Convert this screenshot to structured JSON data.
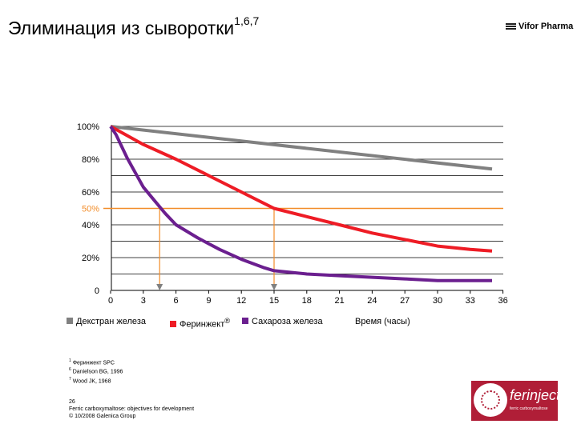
{
  "header": {
    "title": "Элиминация из сыворотки",
    "title_sup": "1,6,7",
    "logo_text": "Vifor Pharma"
  },
  "chart_data": {
    "type": "line",
    "xlabel": "Время (часы)",
    "ylabel": "",
    "x_ticks": [
      0,
      3,
      6,
      9,
      12,
      15,
      18,
      21,
      24,
      27,
      30,
      33,
      36
    ],
    "y_tick_labels": [
      {
        "value": 0,
        "label": "0"
      },
      {
        "value": 20,
        "label": "20%"
      },
      {
        "value": 40,
        "label": "40%"
      },
      {
        "value": 50,
        "label": "50%"
      },
      {
        "value": 60,
        "label": "60%"
      },
      {
        "value": 80,
        "label": "80%"
      },
      {
        "value": 100,
        "label": "100%"
      }
    ],
    "gridlines": [
      10,
      20,
      30,
      40,
      50,
      60,
      70,
      80,
      90,
      100
    ],
    "xlim": [
      0,
      35
    ],
    "ylim": [
      0,
      100
    ],
    "grid": true,
    "legend_position": "bottom",
    "reference_line": {
      "value": 50,
      "color": "#f28c28"
    },
    "drop_lines": [
      {
        "x": 4.5
      },
      {
        "x": 15
      }
    ],
    "series": [
      {
        "name": "Декстран железа",
        "color": "#808080",
        "x": [
          0,
          35
        ],
        "y": [
          100,
          74
        ]
      },
      {
        "name": "Феринжект",
        "name_sup": "®",
        "color": "#ee1c25",
        "x": [
          0,
          3,
          6,
          9,
          12,
          15,
          18,
          21,
          24,
          27,
          30,
          33,
          35
        ],
        "y": [
          100,
          89,
          80,
          70,
          60,
          50,
          45,
          40,
          35,
          31,
          27,
          25,
          24
        ]
      },
      {
        "name": "Сахароза железа",
        "color": "#6b1f8f",
        "x": [
          0,
          0.5,
          1,
          1.5,
          2,
          3,
          4,
          5,
          6,
          8,
          10,
          12,
          14,
          15,
          18,
          21,
          24,
          27,
          30,
          33,
          35
        ],
        "y": [
          100,
          95,
          88,
          81,
          75,
          63,
          55,
          47,
          40,
          32,
          25,
          19,
          14,
          12,
          10,
          9,
          8,
          7,
          6,
          6,
          6
        ]
      }
    ]
  },
  "footnotes": {
    "line1_sup": "1",
    "line1": "Феринжект SPC",
    "line2_sup": "6",
    "line2": "Danielson BG, 1996",
    "line3_sup": "7",
    "line3": "Wood JK, 1968"
  },
  "slide_info": {
    "page": "26",
    "title": "Ferric carboxymaltose: objectives for development",
    "copyright": "© 10/2008 Galenica Group"
  },
  "brand": {
    "name": "ferinject",
    "name_sup": "®",
    "sub": "ferric carboxymaltose"
  }
}
